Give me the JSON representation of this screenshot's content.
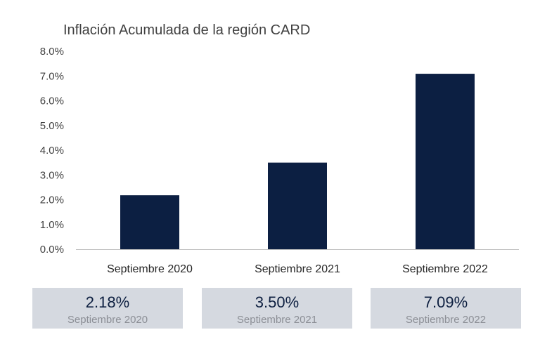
{
  "colors": {
    "bar": "#0c1f42",
    "card_bg": "#d5d9e0",
    "axis": "#bfbfbf"
  },
  "chart_data": {
    "type": "bar",
    "title": "Inflación Acumulada de la región CARD",
    "categories": [
      "Septiembre 2020",
      "Septiembre 2021",
      "Septiembre 2022"
    ],
    "values": [
      2.18,
      3.5,
      7.09
    ],
    "ylim": [
      0,
      8
    ],
    "yticks": [
      "0.0%",
      "1.0%",
      "2.0%",
      "3.0%",
      "4.0%",
      "5.0%",
      "6.0%",
      "7.0%",
      "8.0%"
    ],
    "grid": false,
    "xlabel": "",
    "ylabel": ""
  },
  "summary_cards": [
    {
      "value": "2.18%",
      "label": "Septiembre 2020"
    },
    {
      "value": "3.50%",
      "label": "Septiembre 2021"
    },
    {
      "value": "7.09%",
      "label": "Septiembre 2022"
    }
  ]
}
